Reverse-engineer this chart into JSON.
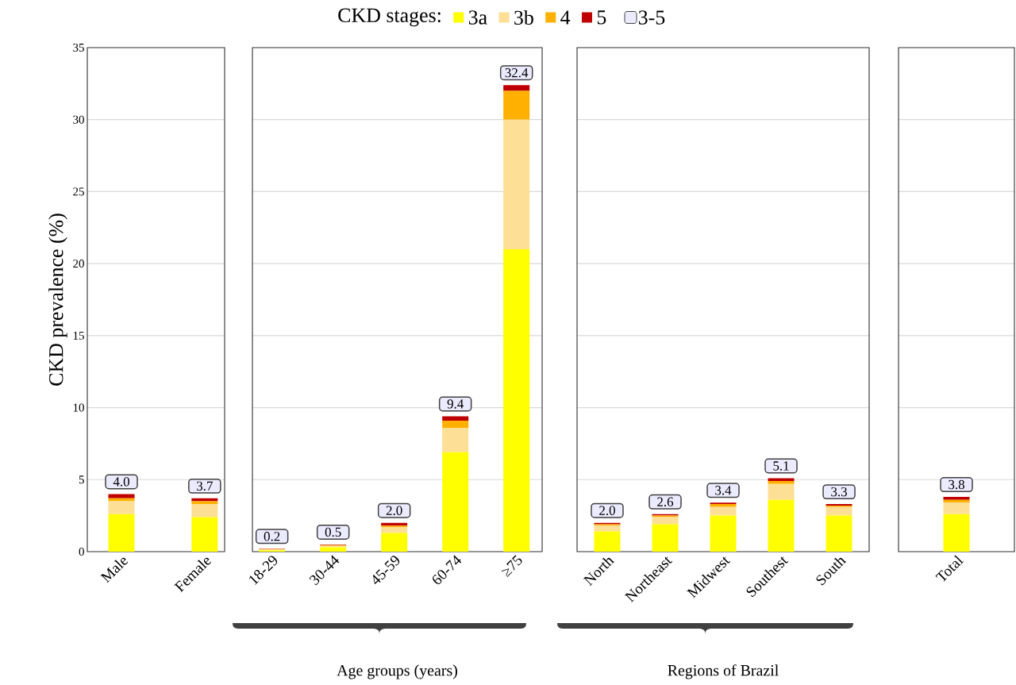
{
  "chart_data": [
    {
      "type": "bar",
      "stacked": true,
      "legend": "top",
      "legend_title": "CKD stages:",
      "ylabel": "CKD prevalence (%)",
      "annotations": [
        "3-5"
      ],
      "categories": [
        "Male",
        "Female"
      ],
      "series": [
        {
          "name": "3a",
          "color": "#ffff00",
          "values": [
            2.6,
            2.4
          ]
        },
        {
          "name": "3b",
          "color": "#fddf95",
          "values": [
            0.9,
            0.9
          ]
        },
        {
          "name": "4",
          "color": "#ffb000",
          "values": [
            0.2,
            0.2
          ]
        },
        {
          "name": "5",
          "color": "#c00000",
          "values": [
            0.3,
            0.2
          ]
        }
      ],
      "totals": [
        "4.0",
        "3.7"
      ],
      "ylim": [
        0,
        35
      ],
      "yticks": [
        0,
        5,
        10,
        15,
        20,
        25,
        30,
        35
      ],
      "grid": "y"
    },
    {
      "type": "bar",
      "stacked": true,
      "xlabel": "Age groups (years)",
      "categories": [
        "18-29",
        "30-44",
        "45-59",
        "60-74",
        "≥75"
      ],
      "series": [
        {
          "color": "#ffff00",
          "values": [
            0.1,
            0.3,
            1.3,
            6.9,
            21.0
          ]
        },
        {
          "color": "#fddf95",
          "values": [
            0.05,
            0.1,
            0.4,
            1.7,
            9.0
          ]
        },
        {
          "color": "#ffb000",
          "values": [
            0.03,
            0.05,
            0.1,
            0.5,
            2.0
          ]
        },
        {
          "color": "#c00000",
          "values": [
            0.02,
            0.05,
            0.2,
            0.3,
            0.4
          ]
        }
      ],
      "totals": [
        "0.2",
        "0.5",
        "2.0",
        "9.4",
        "32.4"
      ],
      "ylim": [
        0,
        35
      ],
      "yticks": [
        0,
        5,
        10,
        15,
        20,
        25,
        30,
        35
      ],
      "grid": "y",
      "tick_labels": "x"
    },
    {
      "type": "bar",
      "stacked": true,
      "xlabel": "Regions of Brazil",
      "categories": [
        "North",
        "Northeast",
        "Midwest",
        "Southest",
        "South"
      ],
      "series": [
        {
          "color": "#ffff00",
          "values": [
            1.4,
            1.9,
            2.5,
            3.6,
            2.5
          ]
        },
        {
          "color": "#fddf95",
          "values": [
            0.4,
            0.5,
            0.6,
            1.1,
            0.6
          ]
        },
        {
          "color": "#ffb000",
          "values": [
            0.1,
            0.1,
            0.2,
            0.2,
            0.1
          ]
        },
        {
          "color": "#c00000",
          "values": [
            0.1,
            0.1,
            0.1,
            0.2,
            0.1
          ]
        }
      ],
      "totals": [
        "2.0",
        "2.6",
        "3.4",
        "5.1",
        "3.3"
      ],
      "ylim": [
        0,
        35
      ],
      "yticks": [
        0,
        5,
        10,
        15,
        20,
        25,
        30,
        35
      ],
      "grid": "y",
      "tick_labels": "x"
    },
    {
      "type": "bar",
      "stacked": true,
      "categories": [
        "Total"
      ],
      "series": [
        {
          "color": "#ffff00",
          "values": [
            2.6
          ]
        },
        {
          "color": "#fddf95",
          "values": [
            0.8
          ]
        },
        {
          "color": "#ffb000",
          "values": [
            0.2
          ]
        },
        {
          "color": "#c00000",
          "values": [
            0.2
          ]
        }
      ],
      "totals": [
        "3.8"
      ],
      "ylim": [
        0,
        35
      ],
      "yticks": [
        0,
        5,
        10,
        15,
        20,
        25,
        30,
        35
      ],
      "grid": "y",
      "tick_labels": "x"
    }
  ]
}
